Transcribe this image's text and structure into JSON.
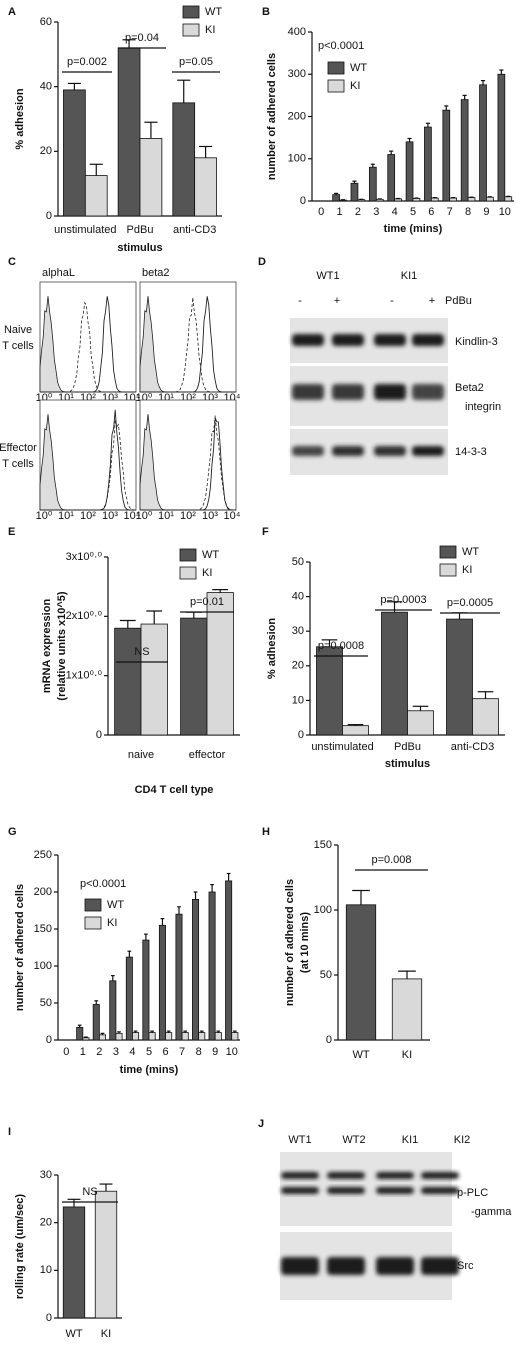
{
  "chart_data": [
    {
      "type": "bar",
      "panel": "A",
      "ylabel": [
        "% adhesion"
      ],
      "xlabel": "stimulus",
      "categories": [
        "unstimulated",
        "PdBu",
        "anti-CD3"
      ],
      "series": [
        {
          "name": "WT",
          "color": "#555555",
          "values": [
            39,
            52,
            35
          ],
          "errors": [
            2,
            2.5,
            7
          ]
        },
        {
          "name": "KI",
          "color": "#d9d9d9",
          "values": [
            12.5,
            24,
            18
          ],
          "errors": [
            3.5,
            5,
            3.5
          ]
        }
      ],
      "ylim": [
        0,
        60
      ],
      "yticks": [
        0,
        20,
        40,
        60
      ],
      "annotations": [
        "p=0.002",
        "p=0.04",
        "p=0.05"
      ]
    },
    {
      "type": "bar",
      "panel": "B",
      "ylabel": [
        "number of adhered cells"
      ],
      "xlabel": "time (mins)",
      "categories": [
        "0",
        "1",
        "2",
        "3",
        "4",
        "5",
        "6",
        "7",
        "8",
        "9",
        "10"
      ],
      "series": [
        {
          "name": "WT",
          "color": "#555555",
          "values": [
            0,
            15,
            42,
            80,
            110,
            140,
            175,
            215,
            240,
            275,
            300
          ],
          "errors": [
            0,
            3,
            5,
            7,
            8,
            8,
            9,
            10,
            10,
            10,
            10
          ]
        },
        {
          "name": "KI",
          "color": "#d9d9d9",
          "values": [
            0,
            2,
            3,
            4,
            5,
            6,
            7,
            7,
            8,
            9,
            10
          ],
          "errors": [
            0,
            1,
            1,
            1,
            1,
            1,
            1,
            1,
            1,
            1,
            1
          ]
        }
      ],
      "ylim": [
        0,
        400
      ],
      "yticks": [
        0,
        100,
        200,
        300,
        400
      ],
      "annotations": [
        "p<0.0001"
      ]
    },
    {
      "type": "bar",
      "panel": "E",
      "ylabel": [
        "mRNA expression",
        "(relative units x10^5)"
      ],
      "xlabel": "CD4 T cell type",
      "categories": [
        "naive",
        "effector"
      ],
      "series": [
        {
          "name": "WT",
          "color": "#555555",
          "values": [
            1.8,
            1.97
          ],
          "errors": [
            0.13,
            0.1
          ]
        },
        {
          "name": "KI",
          "color": "#d9d9d9",
          "values": [
            1.87,
            2.4
          ],
          "errors": [
            0.22,
            0.05
          ]
        }
      ],
      "ylim": [
        0,
        3
      ],
      "yticks": [
        0,
        {
          "value": 1,
          "label": "1x10⁰·⁰"
        },
        {
          "value": 2,
          "label": "2x10⁰·⁰"
        },
        {
          "value": 3,
          "label": "3x10⁰·⁰"
        }
      ],
      "annotations": [
        "NS",
        "p=0.01"
      ]
    },
    {
      "type": "bar",
      "panel": "F",
      "ylabel": [
        "% adhesion"
      ],
      "xlabel": "stimulus",
      "categories": [
        "unstimulated",
        "PdBu",
        "anti-CD3"
      ],
      "series": [
        {
          "name": "WT",
          "color": "#555555",
          "values": [
            25.5,
            35.5,
            33.5
          ],
          "errors": [
            2,
            3,
            1.8
          ]
        },
        {
          "name": "KI",
          "color": "#d9d9d9",
          "values": [
            2.7,
            7,
            10.5
          ],
          "errors": [
            0.3,
            1.3,
            2
          ]
        }
      ],
      "ylim": [
        0,
        50
      ],
      "yticks": [
        0,
        10,
        20,
        30,
        40,
        50
      ],
      "annotations": [
        "p=0.0008",
        "p=0.0003",
        "p=0.0005"
      ]
    },
    {
      "type": "bar",
      "panel": "G",
      "ylabel": [
        "number of adhered cells"
      ],
      "xlabel": "time (mins)",
      "categories": [
        "0",
        "1",
        "2",
        "3",
        "4",
        "5",
        "6",
        "7",
        "8",
        "9",
        "10"
      ],
      "series": [
        {
          "name": "WT",
          "color": "#555555",
          "values": [
            0,
            17,
            48,
            80,
            112,
            135,
            155,
            170,
            190,
            200,
            215
          ],
          "errors": [
            0,
            3,
            5,
            7,
            8,
            8,
            9,
            10,
            10,
            10,
            10
          ]
        },
        {
          "name": "KI",
          "color": "#d9d9d9",
          "values": [
            0,
            3,
            7,
            9,
            10,
            10,
            10,
            10,
            10,
            10,
            10
          ],
          "errors": [
            0,
            1,
            2,
            2,
            2,
            2,
            2,
            2,
            2,
            2,
            2
          ]
        }
      ],
      "ylim": [
        0,
        250
      ],
      "yticks": [
        0,
        50,
        100,
        150,
        200,
        250
      ],
      "annotations": [
        "p<0.0001"
      ]
    },
    {
      "type": "bar",
      "panel": "H",
      "ylabel": [
        "number of adhered cells",
        "(at 10 mins)"
      ],
      "categories": [
        "WT",
        "KI"
      ],
      "values": [
        104,
        47
      ],
      "errors": [
        11,
        6
      ],
      "colors": [
        "#555555",
        "#d9d9d9"
      ],
      "ylim": [
        0,
        150
      ],
      "yticks": [
        0,
        50,
        100,
        150
      ],
      "annotations": [
        "p=0.008"
      ]
    },
    {
      "type": "bar",
      "panel": "I",
      "ylabel": [
        "rolling rate (um/sec)"
      ],
      "categories": [
        "WT",
        "KI"
      ],
      "values": [
        23.3,
        26.6
      ],
      "errors": [
        1.6,
        1.5
      ],
      "colors": [
        "#555555",
        "#d9d9d9"
      ],
      "ylim": [
        0,
        30
      ],
      "yticks": [
        0,
        10,
        20,
        30
      ],
      "annotations": [
        "NS"
      ]
    }
  ],
  "flow": {
    "panel": "C",
    "columns": [
      "alphaL",
      "beta2"
    ],
    "rows": [
      [
        "Naive",
        "T cells"
      ],
      [
        "Effector",
        "T cells"
      ]
    ],
    "ticklabels": [
      "10⁰",
      "10¹",
      "10²",
      "10³",
      "10⁴"
    ]
  },
  "blot_d": {
    "panel": "D",
    "lanes": [
      "WT1",
      "KI1"
    ],
    "treatments": [
      "-",
      "+",
      "-",
      "+"
    ],
    "treatment_label": "PdBu",
    "bands": [
      [
        "Kindlin-3"
      ],
      [
        "Beta2",
        "integrin"
      ],
      [
        "14-3-3"
      ]
    ]
  },
  "blot_j": {
    "panel": "J",
    "lanes": [
      "WT1",
      "WT2",
      "KI1",
      "KI2"
    ],
    "bands": [
      [
        "p-PLC",
        "-gamma"
      ],
      [
        "Src"
      ]
    ]
  }
}
